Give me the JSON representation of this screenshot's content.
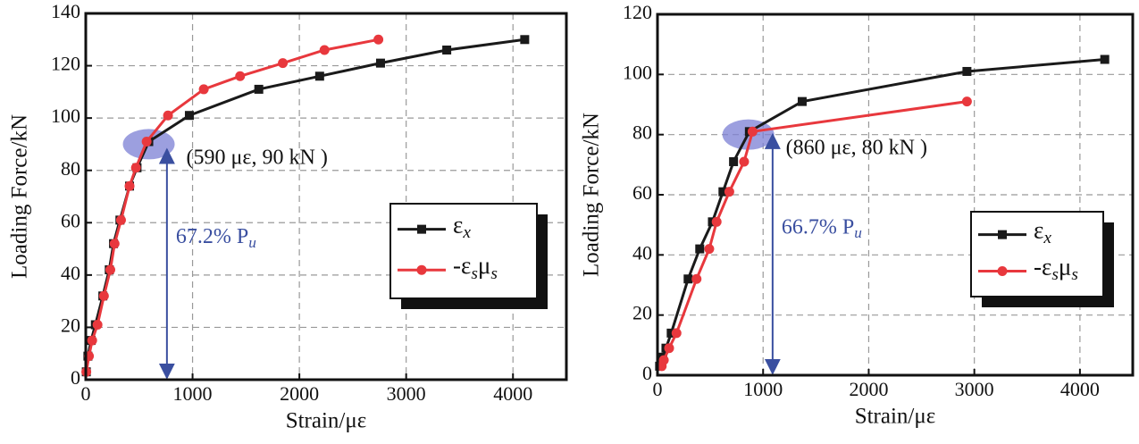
{
  "chart_data": [
    {
      "type": "line",
      "xlabel": "Strain/με",
      "ylabel": "Loading Force/kN",
      "xlim": [
        0,
        4500
      ],
      "xticks": [
        0,
        1000,
        2000,
        3000,
        4000
      ],
      "ylim": [
        0,
        140
      ],
      "yticks": [
        0,
        20,
        40,
        60,
        80,
        100,
        120,
        140
      ],
      "grid": true,
      "legend": "right",
      "series": [
        {
          "name": "εx",
          "color": "#1a1a1a",
          "marker": "square",
          "x": [
            5,
            20,
            50,
            90,
            160,
            220,
            260,
            320,
            410,
            480,
            590,
            970,
            1620,
            2190,
            2760,
            3380,
            4110
          ],
          "values": [
            3,
            9,
            15,
            21,
            32,
            42,
            52,
            61,
            74,
            81,
            91,
            101,
            111,
            116,
            121,
            126,
            130
          ]
        },
        {
          "name": "-εsμs",
          "color": "#e8383d",
          "marker": "circle",
          "x": [
            5,
            30,
            60,
            110,
            170,
            230,
            270,
            330,
            410,
            470,
            570,
            770,
            1105,
            1445,
            1845,
            2235,
            2740
          ],
          "values": [
            3,
            9,
            15,
            21,
            32,
            42,
            52,
            61,
            74,
            81,
            91,
            101,
            111,
            116,
            121,
            126,
            130
          ]
        }
      ],
      "highlight": {
        "text": "(590 με, 90 kN )",
        "x": 590,
        "y": 90
      },
      "arrow": {
        "text": "67.2% Pu",
        "x": 760,
        "from": 0,
        "to": 88
      }
    },
    {
      "type": "line",
      "xlabel": "Strain/με",
      "ylabel": "Loading Force/kN",
      "xlim": [
        0,
        4500
      ],
      "xticks": [
        0,
        1000,
        2000,
        3000,
        4000
      ],
      "ylim": [
        0,
        120
      ],
      "yticks": [
        0,
        20,
        40,
        60,
        80,
        100,
        120
      ],
      "grid": true,
      "legend": "right",
      "series": [
        {
          "name": "εx",
          "color": "#1a1a1a",
          "marker": "square",
          "x": [
            20,
            50,
            80,
            130,
            290,
            400,
            520,
            620,
            720,
            870,
            1370,
            2930,
            4235
          ],
          "values": [
            3,
            6,
            9,
            14,
            32,
            42,
            51,
            61,
            71,
            81,
            91,
            101,
            105
          ]
        },
        {
          "name": "-εsμs",
          "color": "#e8383d",
          "marker": "circle",
          "x": [
            40,
            60,
            110,
            180,
            370,
            490,
            560,
            680,
            820,
            900,
            2930
          ],
          "values": [
            3,
            5,
            9,
            14,
            32,
            42,
            51,
            61,
            71,
            81,
            91
          ]
        }
      ],
      "highlight": {
        "text": "(860 με, 80 kN )",
        "x": 860,
        "y": 80
      },
      "arrow": {
        "text": "66.7% Pu",
        "x": 1090,
        "from": 0,
        "to": 80
      }
    }
  ]
}
